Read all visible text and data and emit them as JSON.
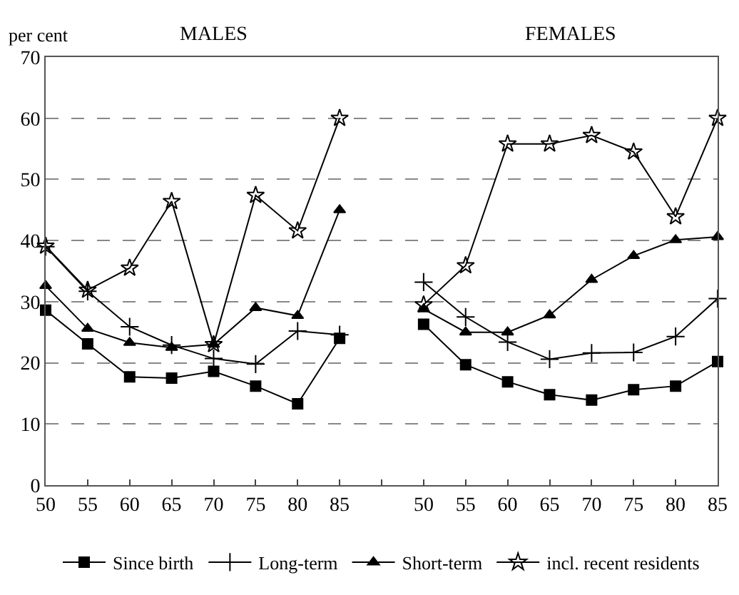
{
  "chart_data": {
    "type": "line",
    "ylabel": "per cent",
    "annotations": [
      "MALES",
      "FEMALES"
    ],
    "categories": [
      "50",
      "55",
      "60",
      "65",
      "70",
      "75",
      "80",
      "85",
      null,
      "50",
      "55",
      "60",
      "65",
      "70",
      "75",
      "80",
      "85"
    ],
    "ylim": [
      0,
      70
    ],
    "yticks": [
      0,
      10,
      20,
      30,
      40,
      50,
      60,
      70
    ],
    "grid": "y",
    "legend": "bottom",
    "series": [
      {
        "name": "Since birth",
        "color": "#000000",
        "marker": "square",
        "values": [
          28.6,
          23.1,
          17.7,
          17.5,
          18.6,
          16.2,
          13.3,
          24.0,
          null,
          26.3,
          19.7,
          16.9,
          14.8,
          13.9,
          15.6,
          16.2,
          20.2
        ]
      },
      {
        "name": "Long-term",
        "color": "#000000",
        "marker": "cross",
        "values": [
          39.0,
          31.7,
          25.9,
          22.9,
          20.7,
          19.8,
          25.2,
          24.6,
          null,
          33.2,
          27.5,
          23.4,
          20.6,
          21.6,
          21.7,
          24.3,
          30.5
        ]
      },
      {
        "name": "Short-term",
        "color": "#000000",
        "marker": "triangle",
        "values": [
          32.6,
          25.6,
          23.3,
          22.5,
          23.0,
          29.0,
          27.7,
          45.0,
          null,
          28.8,
          25.0,
          25.0,
          27.8,
          33.6,
          37.5,
          40.1,
          40.6
        ]
      },
      {
        "name": "incl. recent residents",
        "color": "#000000",
        "marker": "star",
        "values": [
          39.1,
          31.9,
          35.5,
          46.4,
          23.0,
          47.4,
          41.6,
          60.0,
          null,
          29.5,
          35.9,
          55.8,
          55.8,
          57.2,
          54.5,
          43.9,
          60.0
        ]
      }
    ]
  }
}
